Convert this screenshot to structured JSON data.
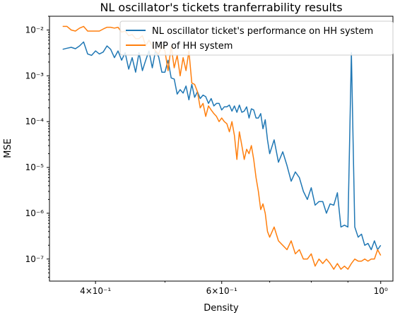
{
  "chart_data": {
    "type": "line",
    "title": "NL oscillator's tickets tranferrability results",
    "xlabel": "Density",
    "ylabel": "MSE",
    "xscale": "log",
    "yscale": "log",
    "xlim": [
      0.345,
      1.04
    ],
    "ylim": [
      3.3e-08,
      0.02
    ],
    "x_ticks": [
      {
        "value": 0.4,
        "label": "4×10⁻¹"
      },
      {
        "value": 0.6,
        "label": "6×10⁻¹"
      },
      {
        "value": 1.0,
        "label": "10⁰"
      }
    ],
    "y_ticks": [
      {
        "value": 1e-07,
        "label": "10⁻⁷"
      },
      {
        "value": 1e-06,
        "label": "10⁻⁶"
      },
      {
        "value": 1e-05,
        "label": "10⁻⁵"
      },
      {
        "value": 0.0001,
        "label": "10⁻⁴"
      },
      {
        "value": 0.001,
        "label": "10⁻³"
      },
      {
        "value": 0.01,
        "label": "10⁻²"
      }
    ],
    "legend_position": "top-right",
    "grid": false,
    "series": [
      {
        "name": "NL oscillator ticket's performance on HH system",
        "color": "#1f77b4",
        "x": [
          0.36,
          0.365,
          0.37,
          0.375,
          0.38,
          0.385,
          0.39,
          0.395,
          0.4,
          0.405,
          0.41,
          0.415,
          0.42,
          0.425,
          0.43,
          0.435,
          0.44,
          0.445,
          0.45,
          0.455,
          0.46,
          0.465,
          0.47,
          0.475,
          0.48,
          0.485,
          0.49,
          0.495,
          0.5,
          0.505,
          0.51,
          0.515,
          0.52,
          0.525,
          0.53,
          0.535,
          0.54,
          0.545,
          0.55,
          0.555,
          0.56,
          0.565,
          0.57,
          0.575,
          0.58,
          0.585,
          0.59,
          0.595,
          0.6,
          0.605,
          0.61,
          0.615,
          0.62,
          0.625,
          0.63,
          0.635,
          0.64,
          0.645,
          0.65,
          0.655,
          0.66,
          0.665,
          0.67,
          0.675,
          0.68,
          0.685,
          0.69,
          0.695,
          0.7,
          0.71,
          0.72,
          0.73,
          0.74,
          0.75,
          0.76,
          0.77,
          0.78,
          0.79,
          0.8,
          0.81,
          0.82,
          0.83,
          0.84,
          0.85,
          0.86,
          0.87,
          0.88,
          0.89,
          0.9,
          0.91,
          0.92,
          0.93,
          0.94,
          0.95,
          0.96,
          0.97,
          0.98,
          0.99,
          1.0
        ],
        "y": [
          0.0038,
          0.004,
          0.0042,
          0.0039,
          0.0045,
          0.0055,
          0.003,
          0.0028,
          0.0035,
          0.003,
          0.0033,
          0.0045,
          0.0038,
          0.0025,
          0.0035,
          0.0022,
          0.0032,
          0.0014,
          0.0025,
          0.0012,
          0.0032,
          0.0013,
          0.0022,
          0.0035,
          0.0015,
          0.0035,
          0.0026,
          0.0012,
          0.0012,
          0.0022,
          0.0009,
          0.00085,
          0.0004,
          0.0005,
          0.00042,
          0.0006,
          0.0003,
          0.00065,
          0.00034,
          0.00045,
          0.00032,
          0.00038,
          0.00035,
          0.00025,
          0.00032,
          0.00022,
          0.00025,
          0.00025,
          0.00018,
          0.00021,
          0.00021,
          0.00023,
          0.00017,
          0.00022,
          0.00016,
          0.00023,
          0.00016,
          0.00017,
          0.00021,
          0.00012,
          0.00019,
          0.00018,
          0.00012,
          0.00012,
          0.00015,
          7e-05,
          0.00011,
          4e-05,
          2e-05,
          4e-05,
          1.3e-05,
          2.2e-05,
          1.1e-05,
          5e-06,
          8e-06,
          6e-06,
          3e-06,
          2e-06,
          3.6e-06,
          1.5e-06,
          1.8e-06,
          1.8e-06,
          1e-06,
          1.6e-06,
          1.5e-06,
          2.8e-06,
          5e-07,
          5.5e-07,
          5e-07,
          0.0032,
          5e-07,
          3e-07,
          3.5e-07,
          2e-07,
          2.2e-07,
          1.6e-07,
          2.5e-07,
          1.6e-07,
          2e-07
        ]
      },
      {
        "name": "IMP of HH system",
        "color": "#ff7f0e",
        "x": [
          0.36,
          0.365,
          0.37,
          0.375,
          0.38,
          0.385,
          0.39,
          0.395,
          0.4,
          0.405,
          0.41,
          0.415,
          0.42,
          0.425,
          0.43,
          0.435,
          0.44,
          0.445,
          0.45,
          0.455,
          0.46,
          0.465,
          0.47,
          0.475,
          0.48,
          0.485,
          0.49,
          0.495,
          0.5,
          0.505,
          0.51,
          0.515,
          0.52,
          0.525,
          0.53,
          0.535,
          0.54,
          0.545,
          0.55,
          0.555,
          0.56,
          0.565,
          0.57,
          0.575,
          0.58,
          0.585,
          0.59,
          0.595,
          0.6,
          0.605,
          0.61,
          0.615,
          0.62,
          0.625,
          0.63,
          0.635,
          0.64,
          0.645,
          0.65,
          0.655,
          0.66,
          0.665,
          0.67,
          0.675,
          0.68,
          0.685,
          0.69,
          0.695,
          0.7,
          0.71,
          0.72,
          0.73,
          0.74,
          0.75,
          0.76,
          0.77,
          0.78,
          0.79,
          0.8,
          0.81,
          0.82,
          0.83,
          0.84,
          0.85,
          0.86,
          0.87,
          0.88,
          0.89,
          0.9,
          0.91,
          0.92,
          0.93,
          0.94,
          0.95,
          0.96,
          0.97,
          0.98,
          0.99,
          1.0
        ],
        "y": [
          0.012,
          0.012,
          0.01,
          0.0095,
          0.011,
          0.012,
          0.0095,
          0.0095,
          0.0095,
          0.0095,
          0.0105,
          0.0115,
          0.0115,
          0.011,
          0.0115,
          0.009,
          0.0095,
          0.0075,
          0.008,
          0.0065,
          0.0065,
          0.0075,
          0.0045,
          0.006,
          0.0045,
          0.0035,
          0.003,
          0.0045,
          0.0035,
          0.0013,
          0.0045,
          0.0015,
          0.0028,
          0.001,
          0.0025,
          0.0013,
          0.0035,
          0.0007,
          0.00065,
          0.00045,
          0.0002,
          0.00025,
          0.00013,
          0.00022,
          0.00018,
          0.00015,
          0.00013,
          0.0001,
          0.00012,
          0.0001,
          9e-05,
          6e-05,
          0.0001,
          5e-05,
          1.5e-05,
          6e-05,
          3e-05,
          1.5e-05,
          2.5e-05,
          2e-05,
          3e-05,
          1.5e-05,
          6e-06,
          3e-06,
          1.2e-06,
          1.6e-06,
          1e-06,
          4e-07,
          3e-07,
          5e-07,
          2.5e-07,
          2e-07,
          1.6e-07,
          2.5e-07,
          1.3e-07,
          1.6e-07,
          1e-07,
          1e-07,
          1.3e-07,
          7e-08,
          1e-07,
          8e-08,
          1e-07,
          8e-08,
          6e-08,
          8e-08,
          6e-08,
          7e-08,
          6e-08,
          8e-08,
          1e-07,
          9e-08,
          9e-08,
          1e-07,
          9e-08,
          1e-07,
          1e-07,
          1.6e-07,
          1.2e-07
        ]
      }
    ]
  }
}
